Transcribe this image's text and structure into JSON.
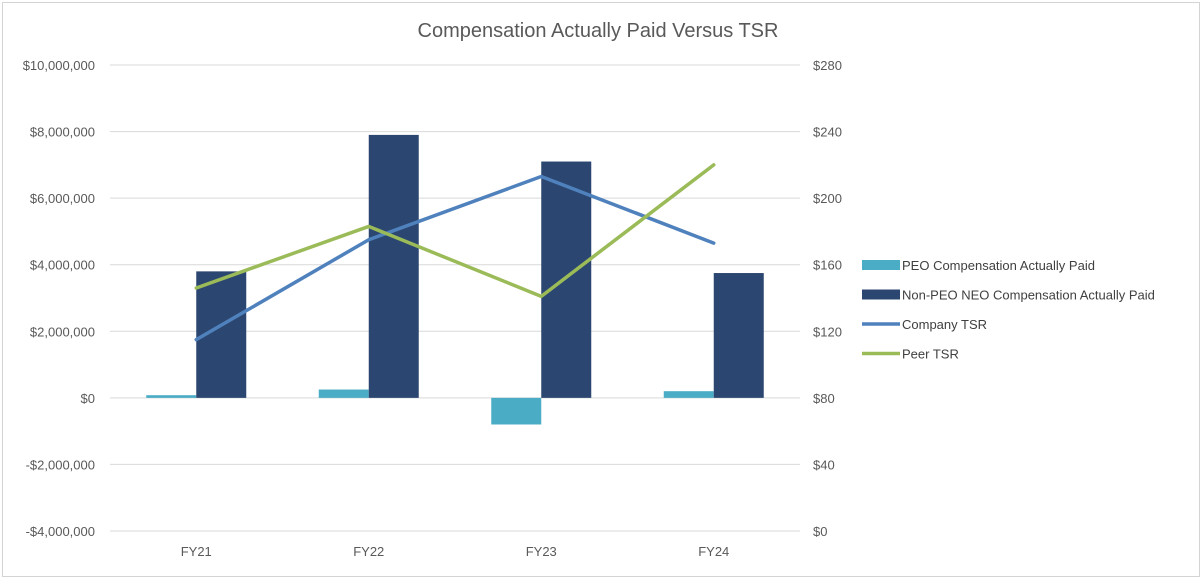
{
  "chart_data": {
    "type": "bar+line",
    "title": "Compensation Actually Paid Versus TSR",
    "categories": [
      "FY21",
      "FY22",
      "FY23",
      "FY24"
    ],
    "left_axis": {
      "ylim": [
        -4000000,
        10000000
      ],
      "ticks": [
        10000000,
        8000000,
        6000000,
        4000000,
        2000000,
        0,
        -2000000,
        -4000000
      ],
      "tick_labels": [
        "$10,000,000",
        "$8,000,000",
        "$6,000,000",
        "$4,000,000",
        "$2,000,000",
        "$0",
        "-$2,000,000",
        "-$4,000,000"
      ]
    },
    "right_axis": {
      "ylim": [
        0,
        280
      ],
      "ticks": [
        280,
        240,
        200,
        160,
        120,
        80,
        40,
        0
      ],
      "tick_labels": [
        "$280",
        "$240",
        "$200",
        "$160",
        "$120",
        "$80",
        "$40",
        "$0"
      ]
    },
    "series": [
      {
        "name": "PEO Compensation Actually Paid",
        "kind": "bar",
        "axis": "left",
        "color": "#4BACC6",
        "values": [
          80000,
          250000,
          -800000,
          200000
        ]
      },
      {
        "name": "Non-PEO NEO Compensation Actually Paid",
        "kind": "bar",
        "axis": "left",
        "color": "#2B4670",
        "values": [
          3800000,
          7900000,
          7100000,
          3750000
        ]
      },
      {
        "name": "Company TSR",
        "kind": "line",
        "axis": "right",
        "color": "#4F81BD",
        "values": [
          115,
          175,
          213,
          173
        ]
      },
      {
        "name": "Peer TSR",
        "kind": "line",
        "axis": "right",
        "color": "#9BBB59",
        "values": [
          146,
          183,
          141,
          220
        ]
      }
    ],
    "grid": true,
    "legend_position": "right"
  }
}
